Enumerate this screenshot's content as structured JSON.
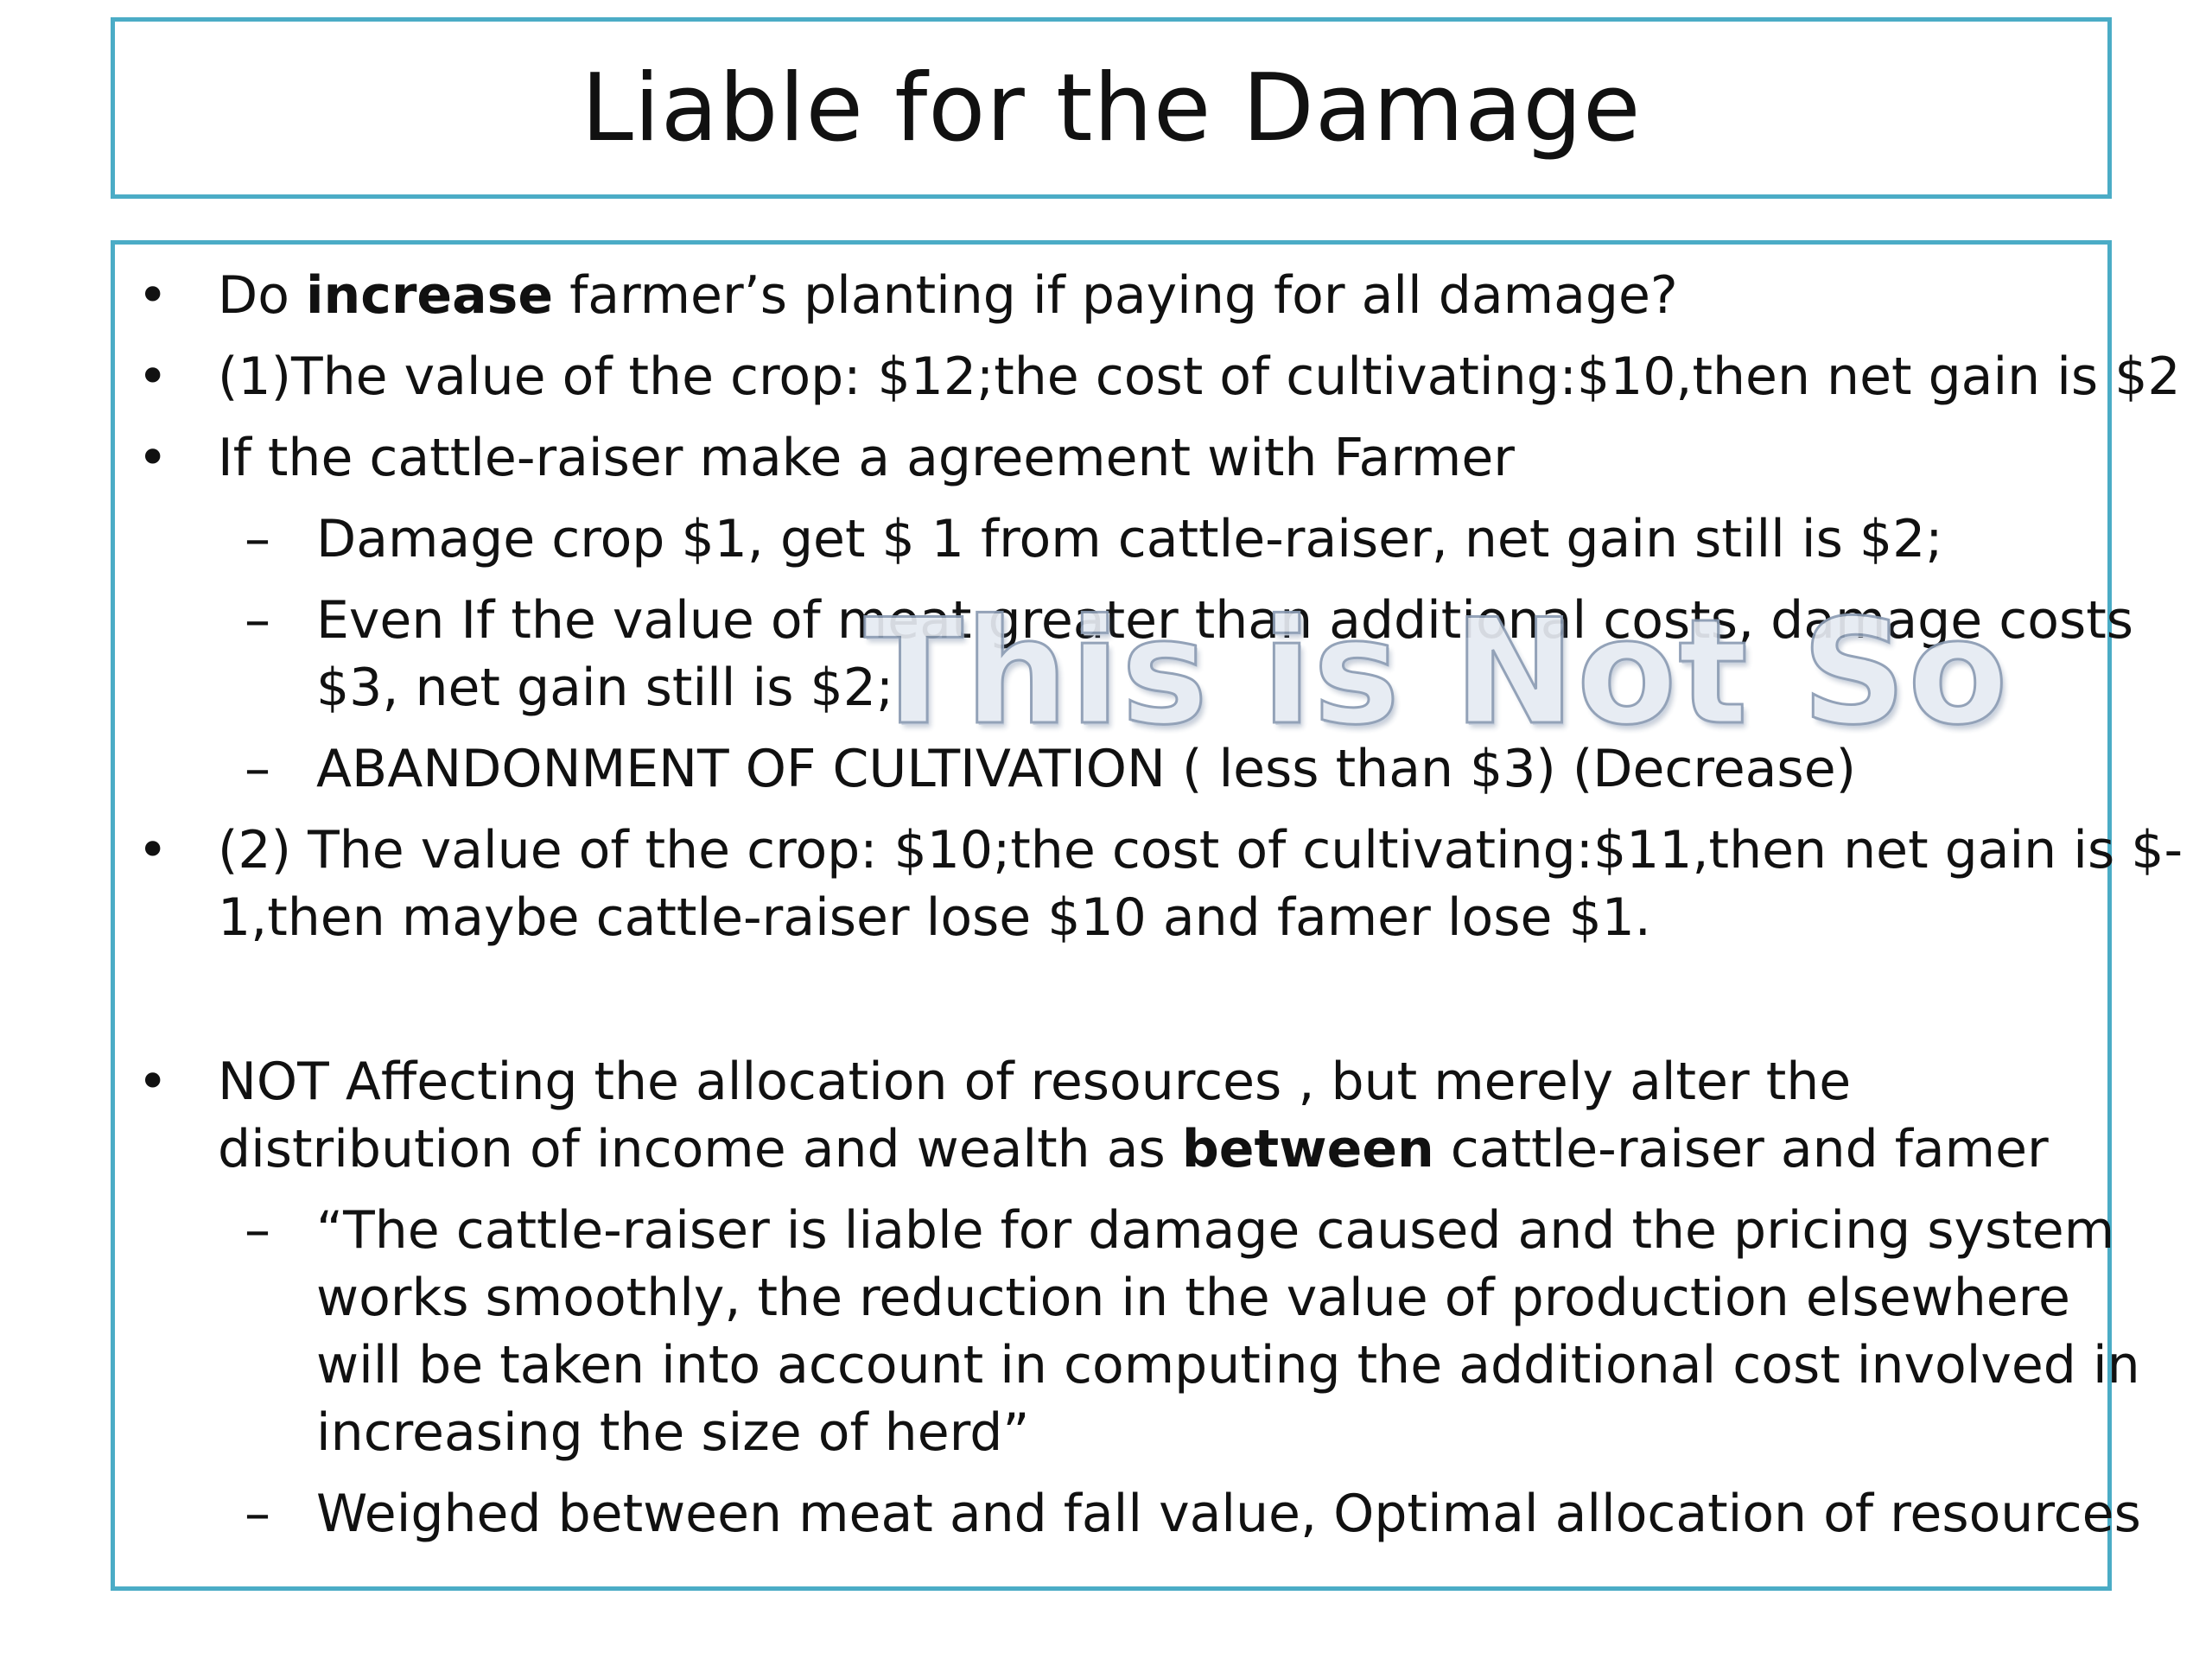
{
  "slide": {
    "title": "Liable for the Damage",
    "watermark": "This is Not So",
    "bullets": {
      "b1_pre": "Do ",
      "b1_bold": "increase",
      "b1_post": " farmer’s planting if paying for all damage?",
      "b2": "(1)The value of the crop: $12;the cost of cultivating:$10,then net gain is $2",
      "b3": "If the cattle-raiser make a agreement with Farmer",
      "b3_sub1": "Damage crop $1,  get $ 1 from cattle-raiser, net gain still is $2;",
      "b3_sub2_line1": "Even If the value of meat greater than additional costs, damage costs",
      "b3_sub2_line2": "$3, net gain still is $2;",
      "b3_sub3": "ABANDONMENT OF CULTIVATION ( less than $3) (Decrease)",
      "b4_line1": "(2) The value of the crop: $10;the cost of cultivating:$11,then net gain is $-",
      "b4_line2": "1,then maybe cattle-raiser lose $10 and famer lose $1.",
      "b5_line1": "NOT Affecting  the allocation of resources , but merely  alter the",
      "b5_line2_pre": "distribution of income and wealth as ",
      "b5_line2_bold": "between",
      "b5_line2_post": " cattle-raiser and famer",
      "b5_sub1_line1": "“The cattle-raiser is liable for damage caused and the pricing system",
      "b5_sub1_line2": "works smoothly, the reduction in the value of production elsewhere",
      "b5_sub1_line3": "will be taken into account in computing the additional cost involved in",
      "b5_sub1_line4": "increasing the size of herd”",
      "b5_sub2": "Weighed between meat and  fall value, Optimal allocation of resources"
    },
    "markers": {
      "bullet": "•",
      "dash": "–"
    }
  }
}
